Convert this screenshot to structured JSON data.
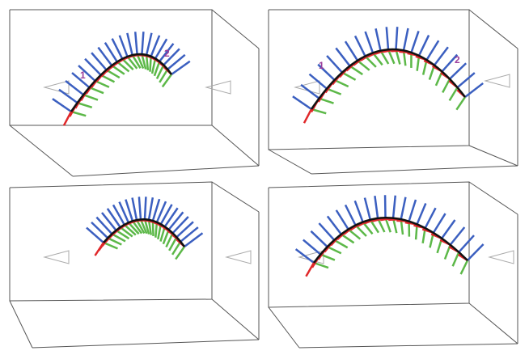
{
  "panels": [
    {
      "labels": [
        "1",
        "2"
      ]
    },
    {
      "labels": [
        "1",
        "2"
      ]
    }
  ]
}
